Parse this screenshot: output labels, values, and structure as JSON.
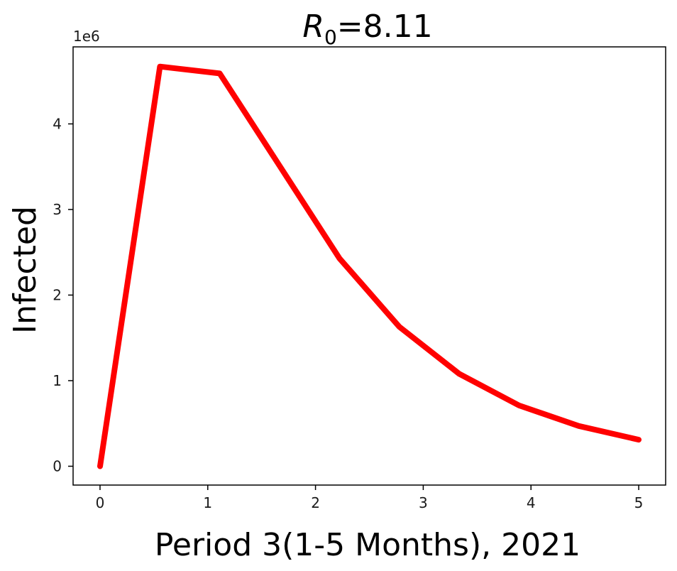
{
  "chart_data": {
    "type": "line",
    "title_main": "R",
    "title_sub": "0",
    "title_rest": "=8.11",
    "xlabel": "Period 3(1-5 Months), 2021",
    "ylabel": "Infected",
    "y_offset_label": "1e6",
    "xlim": [
      -0.25,
      5.25
    ],
    "ylim": [
      -0.22,
      4.9
    ],
    "x_ticks": [
      0,
      1,
      2,
      3,
      4,
      5
    ],
    "x_tick_labels": [
      "0",
      "1",
      "2",
      "3",
      "4",
      "5"
    ],
    "y_ticks": [
      0,
      1,
      2,
      3,
      4
    ],
    "y_tick_labels": [
      "0",
      "1",
      "2",
      "3",
      "4"
    ],
    "grid": false,
    "series": [
      {
        "color": "#ff0000",
        "x": [
          0,
          0.556,
          1.111,
          1.667,
          2.222,
          2.778,
          3.333,
          3.889,
          4.444,
          5.0
        ],
        "y": [
          0.0,
          4.67,
          4.59,
          3.51,
          2.43,
          1.63,
          1.08,
          0.71,
          0.47,
          0.31
        ]
      }
    ]
  }
}
